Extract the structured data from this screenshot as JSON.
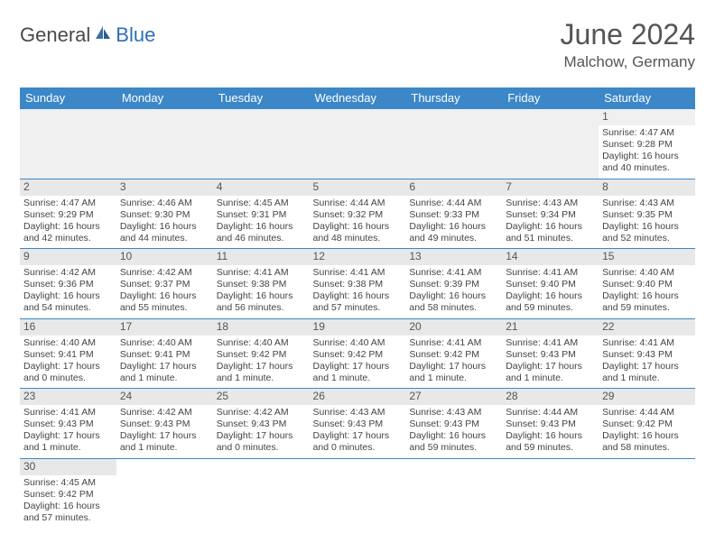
{
  "logo": {
    "text1": "General",
    "text2": "Blue"
  },
  "title": "June 2024",
  "location": "Malchow, Germany",
  "colors": {
    "header_bg": "#3b87c8",
    "header_fg": "#ffffff",
    "daynum_bg": "#e8e8e8",
    "rule": "#3b87c8",
    "logo_blue": "#2d6fb8"
  },
  "weekdays": [
    "Sunday",
    "Monday",
    "Tuesday",
    "Wednesday",
    "Thursday",
    "Friday",
    "Saturday"
  ],
  "weeks": [
    [
      null,
      null,
      null,
      null,
      null,
      null,
      {
        "n": "1",
        "sr": "Sunrise: 4:47 AM",
        "ss": "Sunset: 9:28 PM",
        "d1": "Daylight: 16 hours",
        "d2": "and 40 minutes."
      }
    ],
    [
      {
        "n": "2",
        "sr": "Sunrise: 4:47 AM",
        "ss": "Sunset: 9:29 PM",
        "d1": "Daylight: 16 hours",
        "d2": "and 42 minutes."
      },
      {
        "n": "3",
        "sr": "Sunrise: 4:46 AM",
        "ss": "Sunset: 9:30 PM",
        "d1": "Daylight: 16 hours",
        "d2": "and 44 minutes."
      },
      {
        "n": "4",
        "sr": "Sunrise: 4:45 AM",
        "ss": "Sunset: 9:31 PM",
        "d1": "Daylight: 16 hours",
        "d2": "and 46 minutes."
      },
      {
        "n": "5",
        "sr": "Sunrise: 4:44 AM",
        "ss": "Sunset: 9:32 PM",
        "d1": "Daylight: 16 hours",
        "d2": "and 48 minutes."
      },
      {
        "n": "6",
        "sr": "Sunrise: 4:44 AM",
        "ss": "Sunset: 9:33 PM",
        "d1": "Daylight: 16 hours",
        "d2": "and 49 minutes."
      },
      {
        "n": "7",
        "sr": "Sunrise: 4:43 AM",
        "ss": "Sunset: 9:34 PM",
        "d1": "Daylight: 16 hours",
        "d2": "and 51 minutes."
      },
      {
        "n": "8",
        "sr": "Sunrise: 4:43 AM",
        "ss": "Sunset: 9:35 PM",
        "d1": "Daylight: 16 hours",
        "d2": "and 52 minutes."
      }
    ],
    [
      {
        "n": "9",
        "sr": "Sunrise: 4:42 AM",
        "ss": "Sunset: 9:36 PM",
        "d1": "Daylight: 16 hours",
        "d2": "and 54 minutes."
      },
      {
        "n": "10",
        "sr": "Sunrise: 4:42 AM",
        "ss": "Sunset: 9:37 PM",
        "d1": "Daylight: 16 hours",
        "d2": "and 55 minutes."
      },
      {
        "n": "11",
        "sr": "Sunrise: 4:41 AM",
        "ss": "Sunset: 9:38 PM",
        "d1": "Daylight: 16 hours",
        "d2": "and 56 minutes."
      },
      {
        "n": "12",
        "sr": "Sunrise: 4:41 AM",
        "ss": "Sunset: 9:38 PM",
        "d1": "Daylight: 16 hours",
        "d2": "and 57 minutes."
      },
      {
        "n": "13",
        "sr": "Sunrise: 4:41 AM",
        "ss": "Sunset: 9:39 PM",
        "d1": "Daylight: 16 hours",
        "d2": "and 58 minutes."
      },
      {
        "n": "14",
        "sr": "Sunrise: 4:41 AM",
        "ss": "Sunset: 9:40 PM",
        "d1": "Daylight: 16 hours",
        "d2": "and 59 minutes."
      },
      {
        "n": "15",
        "sr": "Sunrise: 4:40 AM",
        "ss": "Sunset: 9:40 PM",
        "d1": "Daylight: 16 hours",
        "d2": "and 59 minutes."
      }
    ],
    [
      {
        "n": "16",
        "sr": "Sunrise: 4:40 AM",
        "ss": "Sunset: 9:41 PM",
        "d1": "Daylight: 17 hours",
        "d2": "and 0 minutes."
      },
      {
        "n": "17",
        "sr": "Sunrise: 4:40 AM",
        "ss": "Sunset: 9:41 PM",
        "d1": "Daylight: 17 hours",
        "d2": "and 1 minute."
      },
      {
        "n": "18",
        "sr": "Sunrise: 4:40 AM",
        "ss": "Sunset: 9:42 PM",
        "d1": "Daylight: 17 hours",
        "d2": "and 1 minute."
      },
      {
        "n": "19",
        "sr": "Sunrise: 4:40 AM",
        "ss": "Sunset: 9:42 PM",
        "d1": "Daylight: 17 hours",
        "d2": "and 1 minute."
      },
      {
        "n": "20",
        "sr": "Sunrise: 4:41 AM",
        "ss": "Sunset: 9:42 PM",
        "d1": "Daylight: 17 hours",
        "d2": "and 1 minute."
      },
      {
        "n": "21",
        "sr": "Sunrise: 4:41 AM",
        "ss": "Sunset: 9:43 PM",
        "d1": "Daylight: 17 hours",
        "d2": "and 1 minute."
      },
      {
        "n": "22",
        "sr": "Sunrise: 4:41 AM",
        "ss": "Sunset: 9:43 PM",
        "d1": "Daylight: 17 hours",
        "d2": "and 1 minute."
      }
    ],
    [
      {
        "n": "23",
        "sr": "Sunrise: 4:41 AM",
        "ss": "Sunset: 9:43 PM",
        "d1": "Daylight: 17 hours",
        "d2": "and 1 minute."
      },
      {
        "n": "24",
        "sr": "Sunrise: 4:42 AM",
        "ss": "Sunset: 9:43 PM",
        "d1": "Daylight: 17 hours",
        "d2": "and 1 minute."
      },
      {
        "n": "25",
        "sr": "Sunrise: 4:42 AM",
        "ss": "Sunset: 9:43 PM",
        "d1": "Daylight: 17 hours",
        "d2": "and 0 minutes."
      },
      {
        "n": "26",
        "sr": "Sunrise: 4:43 AM",
        "ss": "Sunset: 9:43 PM",
        "d1": "Daylight: 17 hours",
        "d2": "and 0 minutes."
      },
      {
        "n": "27",
        "sr": "Sunrise: 4:43 AM",
        "ss": "Sunset: 9:43 PM",
        "d1": "Daylight: 16 hours",
        "d2": "and 59 minutes."
      },
      {
        "n": "28",
        "sr": "Sunrise: 4:44 AM",
        "ss": "Sunset: 9:43 PM",
        "d1": "Daylight: 16 hours",
        "d2": "and 59 minutes."
      },
      {
        "n": "29",
        "sr": "Sunrise: 4:44 AM",
        "ss": "Sunset: 9:42 PM",
        "d1": "Daylight: 16 hours",
        "d2": "and 58 minutes."
      }
    ],
    [
      {
        "n": "30",
        "sr": "Sunrise: 4:45 AM",
        "ss": "Sunset: 9:42 PM",
        "d1": "Daylight: 16 hours",
        "d2": "and 57 minutes."
      },
      null,
      null,
      null,
      null,
      null,
      null
    ]
  ]
}
